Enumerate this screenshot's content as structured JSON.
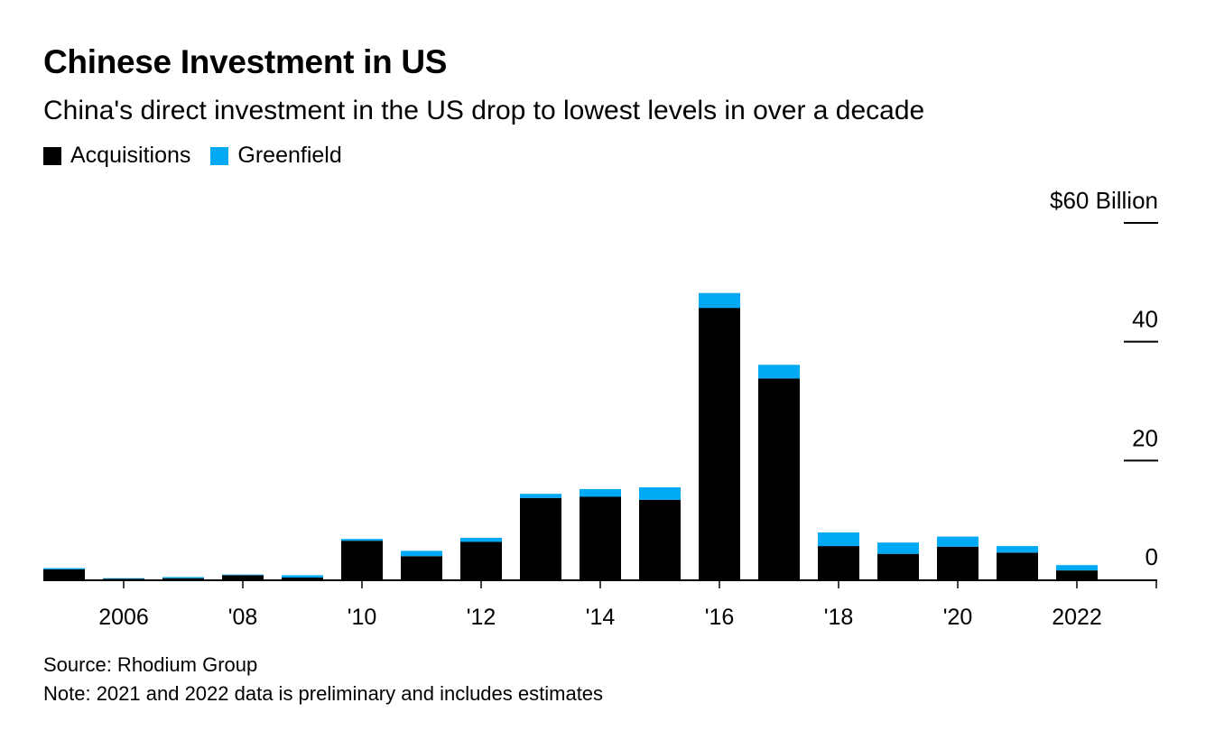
{
  "header": {
    "title": "Chinese Investment in US",
    "subtitle": "China's direct investment in the US drop to lowest levels in over a decade"
  },
  "legend": {
    "items": [
      {
        "label": "Acquisitions",
        "color": "#000000"
      },
      {
        "label": "Greenfield",
        "color": "#00A9F4"
      }
    ]
  },
  "footer": {
    "source": "Source: Rhodium Group",
    "note": "Note: 2021 and 2022 data is preliminary and includes estimates"
  },
  "chart_data": {
    "type": "bar",
    "stacked": true,
    "categories": [
      2005,
      2006,
      2007,
      2008,
      2009,
      2010,
      2011,
      2012,
      2013,
      2014,
      2015,
      2016,
      2017,
      2018,
      2019,
      2020,
      2021,
      2022
    ],
    "x_tick_labels": [
      {
        "year": 2006,
        "label": "2006"
      },
      {
        "year": 2008,
        "label": "'08"
      },
      {
        "year": 2010,
        "label": "'10"
      },
      {
        "year": 2012,
        "label": "'12"
      },
      {
        "year": 2014,
        "label": "'14"
      },
      {
        "year": 2016,
        "label": "'16"
      },
      {
        "year": 2018,
        "label": "'18"
      },
      {
        "year": 2020,
        "label": "'20"
      },
      {
        "year": 2022,
        "label": "2022"
      }
    ],
    "series": [
      {
        "name": "Acquisitions",
        "color": "#000000",
        "values": [
          1.7,
          0.1,
          0.2,
          0.7,
          0.3,
          6.5,
          3.9,
          6.3,
          13.7,
          13.9,
          13.4,
          45.7,
          33.8,
          5.6,
          4.3,
          5.5,
          4.5,
          1.5
        ]
      },
      {
        "name": "Greenfield",
        "color": "#00A9F4",
        "values": [
          0.2,
          0.1,
          0.2,
          0.1,
          0.4,
          0.3,
          0.9,
          0.7,
          0.7,
          1.3,
          2.1,
          2.5,
          2.3,
          2.3,
          1.9,
          1.7,
          1.1,
          0.9
        ]
      }
    ],
    "y_ticks": [
      {
        "value": 0,
        "label": "0"
      },
      {
        "value": 20,
        "label": "20"
      },
      {
        "value": 40,
        "label": "40"
      },
      {
        "value": 60,
        "label": "$60 Billion"
      }
    ],
    "ylim": [
      0,
      60
    ],
    "y_axis_side": "right",
    "grid": false
  }
}
